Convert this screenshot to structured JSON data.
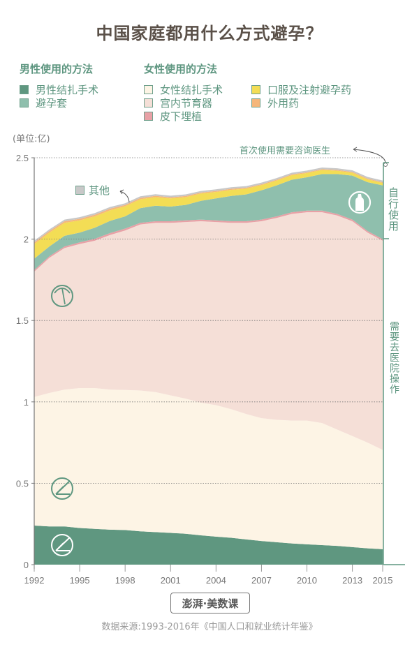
{
  "title": "中国家庭都用什么方式避孕？",
  "legend": {
    "male_heading": "男性使用的方法",
    "female_heading": "女性使用的方法",
    "male_items": [
      {
        "label": "男性结扎手术",
        "color": "#5f9780"
      },
      {
        "label": "避孕套",
        "color": "#8fbfad"
      }
    ],
    "female_items": [
      {
        "label": "女性结扎手术",
        "color": "#fdf4e5"
      },
      {
        "label": "宫内节育器",
        "color": "#f5dfd7"
      },
      {
        "label": "皮下埋植",
        "color": "#e8a1a6"
      },
      {
        "label": "口服及注射避孕药",
        "color": "#f3dd55"
      },
      {
        "label": "外用药",
        "color": "#f5b67a"
      }
    ],
    "other": {
      "label": "其他",
      "color": "#c8c8c8"
    }
  },
  "unit_label": "(单位:亿)",
  "annotations": {
    "consult_doctor": "首次使用需要咨询医生",
    "self_use": "自行使用",
    "hospital": "需要去医院操作"
  },
  "footer": {
    "logo": "澎湃·美数课",
    "source": "数据来源:1993-2016年《中国人口和就业统计年鉴》"
  },
  "chart_data": {
    "type": "area",
    "title": "中国家庭都用什么方式避孕？",
    "xlabel": "",
    "ylabel": "(单位:亿)",
    "ylim": [
      0,
      2.5
    ],
    "yticks": [
      "0",
      "0.5",
      "1",
      "1.5",
      "2",
      "2.5"
    ],
    "xticks": [
      "1992",
      "1995",
      "1998",
      "2001",
      "2004",
      "2007",
      "2010",
      "2013",
      "2015"
    ],
    "grid": "horizontal dotted",
    "stacked": true,
    "x": [
      1992,
      1993,
      1994,
      1995,
      1996,
      1997,
      1998,
      1999,
      2000,
      2001,
      2002,
      2003,
      2004,
      2005,
      2006,
      2007,
      2008,
      2009,
      2010,
      2011,
      2012,
      2013,
      2014,
      2015
    ],
    "series": [
      {
        "name": "男性结扎手术",
        "color": "#5f9780",
        "values": [
          0.24,
          0.235,
          0.235,
          0.225,
          0.22,
          0.215,
          0.213,
          0.205,
          0.2,
          0.195,
          0.19,
          0.18,
          0.172,
          0.165,
          0.155,
          0.145,
          0.138,
          0.13,
          0.125,
          0.12,
          0.115,
          0.108,
          0.1,
          0.095
        ]
      },
      {
        "name": "女性结扎手术",
        "color": "#fdf4e5",
        "values": [
          0.79,
          0.82,
          0.84,
          0.86,
          0.865,
          0.86,
          0.86,
          0.865,
          0.86,
          0.845,
          0.83,
          0.815,
          0.808,
          0.79,
          0.77,
          0.755,
          0.752,
          0.755,
          0.76,
          0.75,
          0.715,
          0.682,
          0.65,
          0.61
        ]
      },
      {
        "name": "宫内节育器",
        "color": "#f5dfd7",
        "values": [
          0.77,
          0.83,
          0.87,
          0.885,
          0.905,
          0.95,
          0.98,
          1.02,
          1.04,
          1.06,
          1.085,
          1.115,
          1.125,
          1.145,
          1.175,
          1.21,
          1.24,
          1.27,
          1.28,
          1.295,
          1.315,
          1.32,
          1.29,
          1.285
        ]
      },
      {
        "name": "皮下埋植",
        "color": "#e8a1a6",
        "values": [
          0.01,
          0.01,
          0.01,
          0.01,
          0.012,
          0.012,
          0.012,
          0.01,
          0.01,
          0.01,
          0.01,
          0.01,
          0.01,
          0.01,
          0.01,
          0.01,
          0.01,
          0.01,
          0.01,
          0.01,
          0.01,
          0.01,
          0.01,
          0.01
        ]
      },
      {
        "name": "避孕套",
        "color": "#8fbfad",
        "values": [
          0.07,
          0.06,
          0.065,
          0.06,
          0.068,
          0.075,
          0.075,
          0.09,
          0.095,
          0.09,
          0.095,
          0.115,
          0.135,
          0.155,
          0.165,
          0.18,
          0.19,
          0.2,
          0.205,
          0.225,
          0.245,
          0.27,
          0.3,
          0.33
        ]
      },
      {
        "name": "口服及注射避孕药",
        "color": "#f3dd55",
        "values": [
          0.09,
          0.085,
          0.08,
          0.075,
          0.07,
          0.065,
          0.062,
          0.055,
          0.053,
          0.05,
          0.048,
          0.045,
          0.04,
          0.038,
          0.035,
          0.032,
          0.03,
          0.028,
          0.026,
          0.025,
          0.02,
          0.018,
          0.017,
          0.015
        ]
      },
      {
        "name": "外用药",
        "color": "#f5b67a",
        "values": [
          0.01,
          0.01,
          0.01,
          0.01,
          0.01,
          0.01,
          0.008,
          0.008,
          0.008,
          0.007,
          0.007,
          0.006,
          0.006,
          0.006,
          0.006,
          0.005,
          0.005,
          0.005,
          0.005,
          0.005,
          0.005,
          0.005,
          0.005,
          0.005
        ]
      },
      {
        "name": "其他",
        "color": "#c8c8c8",
        "values": [
          0.01,
          0.01,
          0.01,
          0.01,
          0.01,
          0.01,
          0.01,
          0.01,
          0.01,
          0.01,
          0.01,
          0.01,
          0.01,
          0.01,
          0.01,
          0.01,
          0.01,
          0.01,
          0.01,
          0.01,
          0.01,
          0.01,
          0.01,
          0.01
        ]
      }
    ]
  }
}
